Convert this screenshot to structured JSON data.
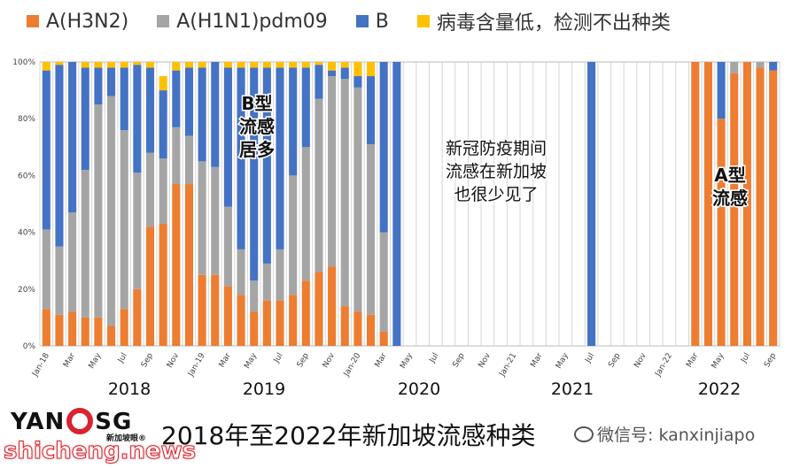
{
  "legend": [
    {
      "label": "A(H3N2)",
      "color": "#ED7D31"
    },
    {
      "label": "A(H1N1)pdm09",
      "color": "#A5A5A5"
    },
    {
      "label": "B",
      "color": "#4472C4"
    },
    {
      "label": "病毒含量低，检测不出种类",
      "color": "#FFC000"
    }
  ],
  "annotations": {
    "b_majority": [
      "B型",
      "流感",
      "居多"
    ],
    "covid_period": [
      "新冠防疫期间",
      "流感在新加坡",
      "也很少见了"
    ],
    "a_type": [
      "A型",
      "流感"
    ]
  },
  "year_labels": [
    "2018",
    "2019",
    "2020",
    "2021",
    "2022"
  ],
  "footer": {
    "caption": "2018年至2022年新加坡流感种类",
    "logo_left": "YAN",
    "logo_right": "SG",
    "logo_sub": "新加坡眼®",
    "site": "shicheng.news",
    "wechat": "微信号: kanxinjiapo"
  },
  "chart_data": {
    "type": "bar",
    "stacked": true,
    "ylim": [
      0,
      100
    ],
    "yticks": [
      "0%",
      "20%",
      "40%",
      "60%",
      "80%",
      "100%"
    ],
    "categories": [
      "Jan-18",
      "Feb-18",
      "Mar",
      "Apr-18",
      "May",
      "Jun-18",
      "Jul",
      "Aug-18",
      "Sep",
      "Oct-18",
      "Nov",
      "Dec-18",
      "Jan-19",
      "Feb-19",
      "Mar",
      "Apr-19",
      "May",
      "Jun-19",
      "Jul",
      "Aug-19",
      "Sep",
      "Oct-19",
      "Nov",
      "Dec-19",
      "Jan-20",
      "Feb-20",
      "Mar",
      "Apr-20",
      "May",
      "Jun-20",
      "Jul",
      "Aug-20",
      "Sep",
      "Oct-20",
      "Nov",
      "Dec-20",
      "Jan-21",
      "Feb-21",
      "Mar",
      "Apr-21",
      "May",
      "Jun-21",
      "Jul",
      "Aug-21",
      "Sep",
      "Oct-21",
      "Nov",
      "Dec-21",
      "Jan-22",
      "Feb-22",
      "Mar",
      "Apr-22",
      "May",
      "Jun-22",
      "Jul",
      "Aug-22",
      "Sep"
    ],
    "tick_labels": [
      "Jan-18",
      "Mar",
      "May",
      "Jul",
      "Sep",
      "Nov",
      "Jan-19",
      "Mar",
      "May",
      "Jul",
      "Sep",
      "Nov",
      "Jan-20",
      "Mar",
      "May",
      "Jul",
      "Sep",
      "Nov",
      "Jan-21",
      "Mar",
      "May",
      "Jul",
      "Sep",
      "Nov",
      "Jan-22",
      "Mar",
      "May",
      "Jul",
      "Sep"
    ],
    "series": [
      {
        "name": "A(H3N2)",
        "color": "#ED7D31",
        "values": [
          13,
          11,
          12,
          10,
          10,
          7,
          13,
          20,
          42,
          43,
          57,
          57,
          25,
          25,
          21,
          18,
          12,
          16,
          16,
          18,
          23,
          26,
          28,
          14,
          12,
          11,
          5,
          0,
          0,
          0,
          0,
          0,
          0,
          0,
          0,
          0,
          0,
          0,
          0,
          0,
          0,
          0,
          0,
          0,
          0,
          0,
          0,
          0,
          0,
          0,
          100,
          100,
          80,
          96,
          100,
          98,
          97
        ]
      },
      {
        "name": "A(H1N1)pdm09",
        "color": "#A5A5A5",
        "values": [
          28,
          24,
          35,
          52,
          75,
          81,
          63,
          41,
          26,
          23,
          20,
          17,
          40,
          38,
          28,
          16,
          11,
          13,
          18,
          42,
          47,
          61,
          67,
          80,
          79,
          60,
          35,
          0,
          0,
          0,
          0,
          0,
          0,
          0,
          0,
          0,
          0,
          0,
          0,
          0,
          0,
          0,
          0,
          0,
          0,
          0,
          0,
          0,
          0,
          0,
          0,
          0,
          0,
          4,
          0,
          2,
          0
        ]
      },
      {
        "name": "B",
        "color": "#4472C4",
        "values": [
          56,
          64,
          53,
          36,
          13,
          10,
          22,
          38,
          30,
          24,
          20,
          24,
          33,
          37,
          49,
          64,
          75,
          69,
          64,
          38,
          28,
          12,
          2,
          4,
          4,
          24,
          60,
          100,
          0,
          0,
          0,
          0,
          0,
          0,
          0,
          0,
          0,
          0,
          0,
          0,
          0,
          0,
          100,
          0,
          0,
          0,
          0,
          0,
          0,
          0,
          0,
          0,
          20,
          0,
          0,
          0,
          3
        ]
      },
      {
        "name": "病毒含量低，检测不出种类",
        "color": "#FFC000",
        "values": [
          3,
          1,
          0,
          2,
          2,
          2,
          2,
          1,
          2,
          5,
          3,
          2,
          2,
          0,
          2,
          2,
          2,
          2,
          2,
          2,
          2,
          1,
          3,
          2,
          5,
          5,
          0,
          0,
          0,
          0,
          0,
          0,
          0,
          0,
          0,
          0,
          0,
          0,
          0,
          0,
          0,
          0,
          0,
          0,
          0,
          0,
          0,
          0,
          0,
          0,
          0,
          0,
          0,
          0,
          0,
          0,
          0
        ]
      }
    ]
  }
}
